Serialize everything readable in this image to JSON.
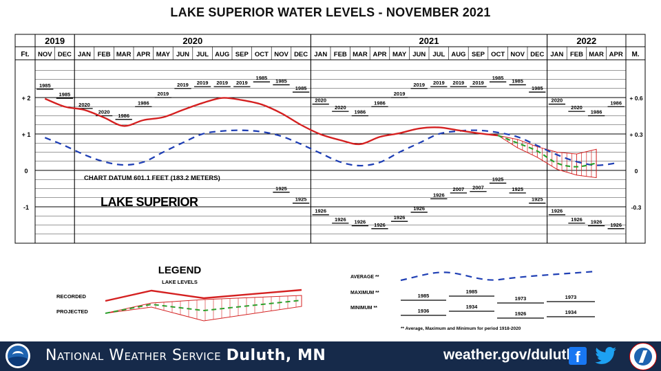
{
  "title": "LAKE SUPERIOR WATER LEVELS - NOVEMBER 2021",
  "header": {
    "ft_label": "Ft.",
    "m_label": "M.",
    "years": [
      {
        "label": "2019",
        "from": 0,
        "to": 2
      },
      {
        "label": "2020",
        "from": 2,
        "to": 14
      },
      {
        "label": "2021",
        "from": 14,
        "to": 26
      },
      {
        "label": "2022",
        "from": 26,
        "to": 30
      }
    ]
  },
  "chart_data": {
    "type": "line",
    "months": [
      "NOV",
      "DEC",
      "JAN",
      "FEB",
      "MAR",
      "APR",
      "MAY",
      "JUN",
      "JUL",
      "AUG",
      "SEP",
      "OCT",
      "NOV",
      "DEC",
      "JAN",
      "FEB",
      "MAR",
      "APR",
      "MAY",
      "JUN",
      "JUL",
      "AUG",
      "SEP",
      "OCT",
      "NOV",
      "DEC",
      "JAN",
      "FEB",
      "MAR",
      "APR"
    ],
    "left_axis": {
      "unit": "Ft.",
      "ticks": [
        {
          "v": 2,
          "label": "+ 2"
        },
        {
          "v": 1,
          "label": "+ 1"
        },
        {
          "v": 0,
          "label": "0"
        },
        {
          "v": -1,
          "label": "-1"
        }
      ]
    },
    "right_axis": {
      "unit": "M.",
      "ticks": [
        {
          "v": 2,
          "label": "+ 0.6"
        },
        {
          "v": 1,
          "label": "+ 0.3"
        },
        {
          "v": 0,
          "label": "0"
        },
        {
          "v": -1,
          "label": "-0.3"
        }
      ]
    },
    "ylim": [
      -2,
      3
    ],
    "recorded": {
      "name": "RECORDED",
      "color": "#d42020",
      "values": [
        1.97,
        1.75,
        1.66,
        1.45,
        1.22,
        1.38,
        1.46,
        1.66,
        1.85,
        1.99,
        1.93,
        1.81,
        1.57,
        1.25,
        0.99,
        0.83,
        0.72,
        0.92,
        1.02,
        1.15,
        1.18,
        1.1,
        1.02,
        0.96
      ]
    },
    "projected": {
      "name": "PROJECTED",
      "color": "#2ca02c",
      "start_index": 23,
      "values": [
        0.96,
        0.75,
        0.53,
        0.2,
        0.1,
        0.2
      ],
      "high": [
        0.96,
        0.85,
        0.65,
        0.5,
        0.45,
        0.58
      ],
      "low": [
        0.96,
        0.62,
        0.36,
        0.03,
        -0.13,
        -0.2
      ]
    },
    "average": {
      "name": "AVERAGE",
      "color": "#1f3fb4",
      "values": [
        0.9,
        0.68,
        0.43,
        0.24,
        0.15,
        0.23,
        0.5,
        0.76,
        1.0,
        1.08,
        1.1,
        1.06,
        0.94,
        0.72,
        0.47,
        0.23,
        0.13,
        0.22,
        0.5,
        0.75,
        1.0,
        1.08,
        1.1,
        1.04,
        0.92,
        0.68,
        0.43,
        0.24,
        0.14,
        0.2
      ]
    },
    "maximum": {
      "values": [
        2.23,
        1.98,
        1.7,
        1.5,
        1.4,
        1.75,
        2.0,
        2.25,
        2.3,
        2.3,
        2.3,
        2.43,
        2.35,
        2.15,
        1.82,
        1.62,
        1.5,
        1.75,
        2.0,
        2.25,
        2.3,
        2.3,
        2.3,
        2.43,
        2.35,
        2.15,
        1.82,
        1.62,
        1.5,
        1.75
      ],
      "years": [
        "1985",
        "1985",
        "2020",
        "2020",
        "1986",
        "1986",
        "2019",
        "2019",
        "2019",
        "2019",
        "2019",
        "1985",
        "1985",
        "1985",
        "2020",
        "2020",
        "1986",
        "1986",
        "2019",
        "2019",
        "2019",
        "2019",
        "2019",
        "1985",
        "1985",
        "1985",
        "2020",
        "2020",
        "1986",
        "1986"
      ]
    },
    "minimum": {
      "values": [
        null,
        null,
        null,
        null,
        null,
        null,
        null,
        null,
        null,
        null,
        null,
        null,
        -0.6,
        -0.9,
        -1.22,
        -1.45,
        -1.52,
        -1.6,
        -1.4,
        -1.15,
        -0.78,
        -0.62,
        -0.58,
        -0.35,
        -0.62,
        -0.9,
        -1.22,
        -1.45,
        -1.52,
        -1.6
      ],
      "years": [
        "",
        "",
        "",
        "",
        "",
        "",
        "",
        "",
        "",
        "",
        "",
        "",
        "1925",
        "1925",
        "1926",
        "1926",
        "1926",
        "1926",
        "1926",
        "1926",
        "1926",
        "2007",
        "2007",
        "1925",
        "1925",
        "1925",
        "1926",
        "1926",
        "1926",
        "1926"
      ]
    },
    "annotations": {
      "datum": "CHART DATUM  601.1 FEET (183.2 METERS)",
      "lake": "LAKE SUPERIOR"
    }
  },
  "legend": {
    "title": "LEGEND",
    "subtitle": "LAKE LEVELS",
    "recorded_label": "RECORDED",
    "projected_label": "PROJECTED",
    "average_label": "AVERAGE **",
    "maximum_label": "MAXIMUM **",
    "minimum_label": "MINIMUM **",
    "max_years": [
      "1985",
      "1985",
      "1973",
      "1973"
    ],
    "mid_years": [
      "1936",
      "1934",
      "1926",
      "1934"
    ],
    "note": "** Average, Maximum and Minimum for period 1918-2020"
  },
  "footer": {
    "office_prefix": "National Weather Service",
    "office_city": "Duluth, MN",
    "url": "weather.gov/duluth",
    "noaa_text": "NOAA",
    "colors": {
      "band": "#162a4a",
      "text": "#ffffff"
    }
  }
}
